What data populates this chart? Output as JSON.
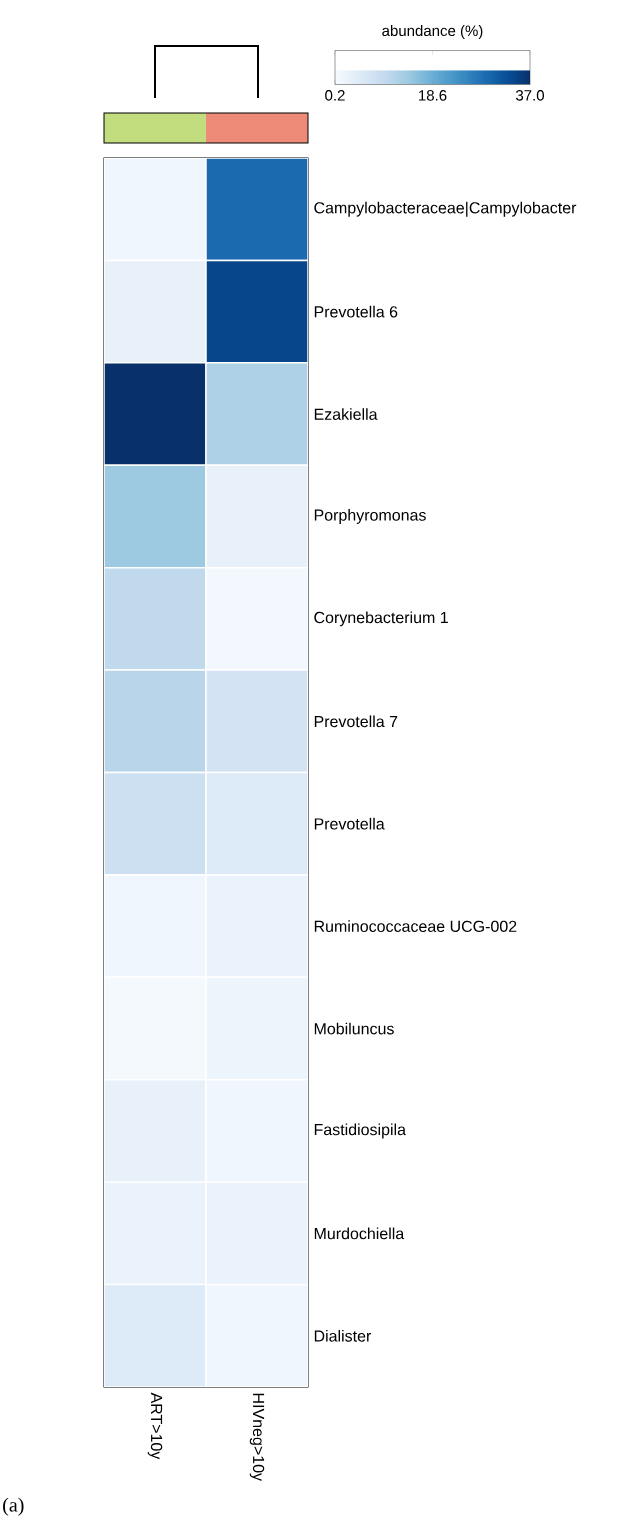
{
  "chart_data": {
    "type": "heatmap",
    "categories": [
      "ART>10y",
      "HIVneg>10y"
    ],
    "y_categories": [
      "Campylobacteraceae|Campylobacter",
      "Prevotella 6",
      "Ezakiella",
      "Porphyromonas",
      "Corynebacterium 1",
      "Prevotella 7",
      "Prevotella",
      "Ruminococcaceae UCG-002",
      "Mobiluncus",
      "Fastidiosipila",
      "Murdochiella",
      "Dialister"
    ],
    "cells": [
      [
        1.5,
        29
      ],
      [
        3,
        34
      ],
      [
        37,
        12
      ],
      [
        14,
        3
      ],
      [
        10,
        1
      ],
      [
        11,
        7
      ],
      [
        8,
        5
      ],
      [
        1.5,
        2.5
      ],
      [
        0.8,
        2
      ],
      [
        3,
        1.5
      ],
      [
        2.5,
        2.5
      ],
      [
        5,
        1.5
      ]
    ],
    "clabel": "abundance (%)",
    "clim": [
      0.2,
      37.0
    ],
    "cticks": [
      0.2,
      18.6,
      {
        "value": 37.0,
        "label": "37.0"
      }
    ],
    "annotations": [
      "(a)"
    ]
  }
}
